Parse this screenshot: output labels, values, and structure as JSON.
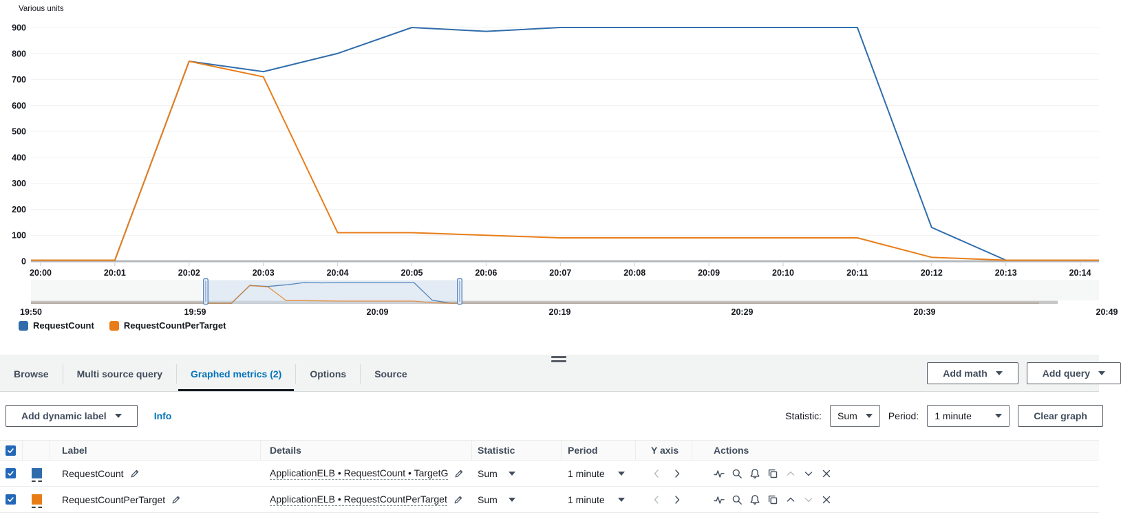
{
  "chart_data": {
    "type": "line",
    "title": "Various units",
    "x": [
      "20:00",
      "20:01",
      "20:02",
      "20:03",
      "20:04",
      "20:05",
      "20:06",
      "20:07",
      "20:08",
      "20:09",
      "20:10",
      "20:11",
      "20:12",
      "20:13",
      "20:14"
    ],
    "series": [
      {
        "name": "RequestCount",
        "color": "#306cac",
        "values": [
          0,
          0,
          770,
          730,
          800,
          900,
          885,
          900,
          900,
          900,
          900,
          900,
          130,
          0,
          0
        ]
      },
      {
        "name": "RequestCountPerTarget",
        "color": "#e87d18",
        "values": [
          0,
          0,
          770,
          710,
          110,
          110,
          100,
          90,
          90,
          90,
          90,
          90,
          15,
          0,
          0
        ]
      }
    ],
    "ylabel": "Various units",
    "ylim": [
      0,
      900
    ],
    "y_ticks": [
      0,
      100,
      200,
      300,
      400,
      500,
      600,
      700,
      800,
      900
    ],
    "grid": "horizontal",
    "legend_position": "bottom-left",
    "minimap": {
      "labels": [
        "19:50",
        "19:59",
        "20:09",
        "20:19",
        "20:29",
        "20:39",
        "20:49"
      ],
      "selection_from": "19:59",
      "selection_to": "20:13"
    }
  },
  "tabs": {
    "items": [
      {
        "label": "Browse"
      },
      {
        "label": "Multi source query"
      },
      {
        "label": "Graphed metrics (2)"
      },
      {
        "label": "Options"
      },
      {
        "label": "Source"
      }
    ]
  },
  "panel_buttons": {
    "add_math": "Add math",
    "add_query": "Add query"
  },
  "toolbar": {
    "add_dynamic_label": "Add dynamic label",
    "info": "Info",
    "statistic_label": "Statistic:",
    "statistic_value": "Sum",
    "period_label": "Period:",
    "period_value": "1 minute",
    "clear_graph": "Clear graph"
  },
  "table": {
    "columns": [
      "Label",
      "Details",
      "Statistic",
      "Period",
      "Y axis",
      "Actions"
    ],
    "rows": [
      {
        "label": "RequestCount",
        "details": "ApplicationELB • RequestCount • TargetG",
        "statistic": "Sum",
        "period": "1 minute"
      },
      {
        "label": "RequestCountPerTarget",
        "details": "ApplicationELB • RequestCountPerTarget",
        "statistic": "Sum",
        "period": "1 minute"
      }
    ]
  }
}
